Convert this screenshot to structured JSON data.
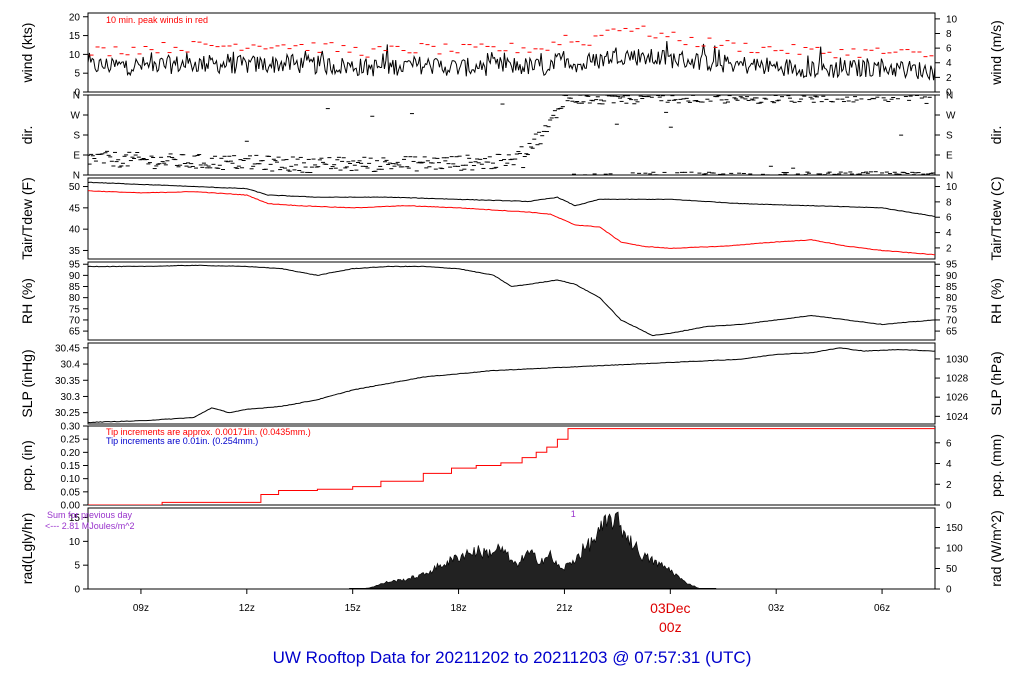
{
  "page": {
    "title": "UW Rooftop Data for 20211202  to  20211203 @ 07:57:31  (UTC)"
  },
  "colors": {
    "primary": "#000000",
    "peak": "#ff0000",
    "blue_note": "#0000cc",
    "purple_note": "#9933cc",
    "date_marker": "#dd0000"
  },
  "chart_data": {
    "type": "line",
    "x_axis": {
      "unit": "UTC hour",
      "range_hours": [
        7.5,
        31.5
      ],
      "ticks": [
        {
          "hour": 9,
          "label": "09z"
        },
        {
          "hour": 12,
          "label": "12z"
        },
        {
          "hour": 15,
          "label": "15z"
        },
        {
          "hour": 18,
          "label": "18z"
        },
        {
          "hour": 21,
          "label": "21z"
        },
        {
          "hour": 24,
          "label": "00z",
          "date_label": "03Dec"
        },
        {
          "hour": 27,
          "label": "03z"
        },
        {
          "hour": 30,
          "label": "06z"
        }
      ]
    },
    "panels": [
      {
        "id": "wind",
        "ylabel_left": "wind (kts)",
        "ylabel_right": "wind (m/s)",
        "ylim": [
          0,
          21
        ],
        "left_ticks": [
          0,
          5,
          10,
          15,
          20
        ],
        "right_ticks": [
          0,
          2,
          4,
          6,
          8,
          10
        ],
        "right_factor": 0.514444,
        "annotation": "10 min. peak winds in red",
        "series": [
          {
            "name": "wind",
            "style": "noisy-line",
            "color": "#000000",
            "x": [
              7.5,
              9,
              10.5,
              12,
              13,
              14.5,
              15.5,
              17,
              18,
              19.5,
              20.5,
              21,
              21.5,
              22.5,
              23.5,
              24.5,
              25.5,
              26.5,
              27.5,
              28.5,
              30,
              31.5
            ],
            "y": [
              7,
              7,
              7.5,
              7.2,
              7.5,
              7,
              6.5,
              7.2,
              6.5,
              7,
              6.5,
              9,
              7,
              10,
              9,
              8.5,
              7.5,
              7,
              6.5,
              6,
              6.5,
              5.5
            ]
          },
          {
            "name": "peak",
            "style": "dashes",
            "color": "#ff0000",
            "x": [
              7.5,
              9,
              10.5,
              12,
              13,
              14.5,
              15.5,
              17,
              18,
              19.5,
              20.5,
              21,
              21.5,
              22.5,
              23.5,
              24.5,
              25.5,
              26.5,
              27.5,
              28.5,
              30,
              31.5
            ],
            "y": [
              10,
              11,
              11.5,
              12,
              12,
              11,
              10,
              11,
              10.5,
              11,
              11,
              14,
              12,
              17,
              15,
              13,
              12,
              11,
              10.5,
              10,
              10,
              9
            ]
          }
        ]
      },
      {
        "id": "dir",
        "ylabel_left": "dir.",
        "ylabel_right": "dir.",
        "ylim": [
          0,
          360
        ],
        "left_ticks": [
          0,
          90,
          180,
          270,
          360
        ],
        "tick_labels": [
          "N",
          "E",
          "S",
          "W",
          "N"
        ],
        "series": [
          {
            "name": "dir",
            "style": "scatter-band",
            "color": "#000000",
            "x": [
              7.5,
              10,
              12,
              14,
              16,
              18,
              19.5,
              20.5,
              21,
              22,
              24,
              26,
              28,
              30,
              31.5
            ],
            "y": [
              75,
              60,
              55,
              45,
              50,
              55,
              60,
              200,
              345,
              340,
              350,
              345,
              350,
              350,
              345
            ]
          }
        ]
      },
      {
        "id": "temp",
        "ylabel_left": "Tair/Tdew (F)",
        "ylabel_right": "Tair/Tdew (C)",
        "ylim": [
          33,
          52
        ],
        "left_ticks": [
          35,
          40,
          45,
          50
        ],
        "right_ticks": [
          2,
          4,
          6,
          8,
          10
        ],
        "right_type": "celsius",
        "series": [
          {
            "name": "Tair",
            "style": "line",
            "color": "#000000",
            "x": [
              7.5,
              9,
              10.5,
              12,
              12.6,
              14,
              16,
              18,
              20,
              20.8,
              21.3,
              22,
              24,
              26,
              28,
              30,
              31.5
            ],
            "y": [
              51,
              50.5,
              50,
              49.5,
              48,
              47.5,
              47.5,
              47,
              46.5,
              47.5,
              45.5,
              47,
              47,
              46,
              45.5,
              45,
              43
            ]
          },
          {
            "name": "Tdew",
            "style": "line",
            "color": "#ff0000",
            "x": [
              7.5,
              9,
              10.5,
              12,
              12.6,
              13.5,
              15,
              16.5,
              18,
              19,
              20,
              20.6,
              21.3,
              22,
              22.6,
              23.2,
              24,
              25.5,
              27,
              28,
              29,
              30,
              31.5
            ],
            "y": [
              49,
              48.5,
              48.8,
              48,
              46,
              45.5,
              45,
              45.5,
              45,
              44.5,
              44,
              43.5,
              41,
              40.5,
              37,
              36,
              35.5,
              36,
              37,
              37.5,
              36,
              35,
              34
            ]
          }
        ]
      },
      {
        "id": "rh",
        "ylabel_left": "RH (%)",
        "ylabel_right": "RH (%)",
        "ylim": [
          61,
          96
        ],
        "left_ticks": [
          65,
          70,
          75,
          80,
          85,
          90,
          95
        ],
        "right_ticks": [
          65,
          70,
          75,
          80,
          85,
          90,
          95
        ],
        "right_factor": 1,
        "series": [
          {
            "name": "RH",
            "style": "line",
            "color": "#000000",
            "x": [
              7.5,
              9,
              10.5,
              12,
              13,
              14,
              15,
              16,
              17,
              18,
              19,
              19.5,
              20,
              20.8,
              21.3,
              22,
              22.6,
              23.5,
              24,
              25,
              26,
              27,
              28,
              29,
              30,
              31.5
            ],
            "y": [
              94,
              94,
              94.5,
              94,
              93,
              90,
              93,
              94,
              94,
              93,
              90,
              85,
              86,
              88,
              86,
              80,
              70,
              63,
              64,
              67,
              68,
              70,
              72,
              70,
              68,
              70
            ]
          }
        ]
      },
      {
        "id": "slp",
        "ylabel_left": "SLP (inHg)",
        "ylabel_right": "SLP (hPa)",
        "ylim": [
          30.215,
          30.465
        ],
        "left_ticks": [
          30.25,
          30.3,
          30.35,
          30.4,
          30.45
        ],
        "right_ticks": [
          1024,
          1026,
          1028,
          1030
        ],
        "right_type": "hpa",
        "series": [
          {
            "name": "SLP",
            "style": "line",
            "color": "#000000",
            "x": [
              7.5,
              9,
              10.5,
              11,
              11.5,
              12,
              13,
              14,
              15,
              16,
              17,
              18,
              19,
              20,
              21,
              22,
              23,
              24,
              25,
              26,
              27,
              28,
              28.8,
              29.5,
              30.5,
              31.5
            ],
            "y": [
              30.22,
              30.225,
              30.235,
              30.265,
              30.25,
              30.26,
              30.27,
              30.29,
              30.32,
              30.34,
              30.36,
              30.37,
              30.38,
              30.385,
              30.39,
              30.395,
              30.4,
              30.405,
              30.41,
              30.415,
              30.43,
              30.435,
              30.45,
              30.44,
              30.445,
              30.44
            ]
          }
        ]
      },
      {
        "id": "pcp",
        "ylabel_left": "pcp. (in)",
        "ylabel_right": "pcp. (mm)",
        "ylim": [
          0,
          0.3
        ],
        "left_ticks": [
          0,
          0.05,
          0.1,
          0.15,
          0.2,
          0.25,
          0.3
        ],
        "left_tick_labels": [
          "0.00",
          "0.05",
          "0.10",
          "0.15",
          "0.20",
          "0.25",
          "0.30"
        ],
        "right_ticks": [
          0,
          2,
          4,
          6
        ],
        "right_factor": 25.4,
        "annotation_red": "Tip increments are approx. 0.00171in. (0.0435mm.)",
        "annotation_blue": "Tip increments are 0.01in. (0.254mm.)",
        "series": [
          {
            "name": "pcp",
            "style": "step",
            "color": "#ff0000",
            "x": [
              7.5,
              9.6,
              12.4,
              12.9,
              14.0,
              15.0,
              15.8,
              17.0,
              17.8,
              18.5,
              19.2,
              19.8,
              20.2,
              20.5,
              20.8,
              21.1,
              31.5
            ],
            "y": [
              0,
              0.01,
              0.04,
              0.055,
              0.06,
              0.07,
              0.09,
              0.12,
              0.14,
              0.15,
              0.16,
              0.18,
              0.2,
              0.22,
              0.25,
              0.29,
              0.29
            ]
          }
        ]
      },
      {
        "id": "rad",
        "ylabel_left": "rad(Lgly/hr)",
        "ylabel_right": "rad (W/m^2)",
        "ylim": [
          0,
          17
        ],
        "left_ticks": [
          0,
          5,
          10,
          15
        ],
        "right_ticks": [
          0,
          50,
          100,
          150
        ],
        "right_factor": 11.622,
        "annotation_sum": "Sum for previous day",
        "annotation_energy": "<--- 2.81 MJoules/m^2",
        "marker_label": "1",
        "series": [
          {
            "name": "rad",
            "style": "area",
            "color": "#000000",
            "x": [
              15.2,
              15.5,
              16,
              16.5,
              17,
              17.5,
              17.8,
              18.2,
              18.5,
              18.8,
              19.2,
              19.6,
              20,
              20.3,
              20.6,
              20.9,
              21.2,
              21.5,
              21.8,
              22.1,
              22.4,
              22.8,
              23.2,
              23.6,
              24,
              24.4,
              24.8
            ],
            "y": [
              0,
              0.3,
              1.5,
              2,
              3,
              5,
              6,
              7.5,
              8,
              7.5,
              8.5,
              5,
              7.5,
              6,
              7,
              4,
              5.5,
              8,
              10,
              13,
              15,
              11,
              7,
              5.5,
              4,
              1.5,
              0.2
            ]
          }
        ]
      }
    ]
  }
}
